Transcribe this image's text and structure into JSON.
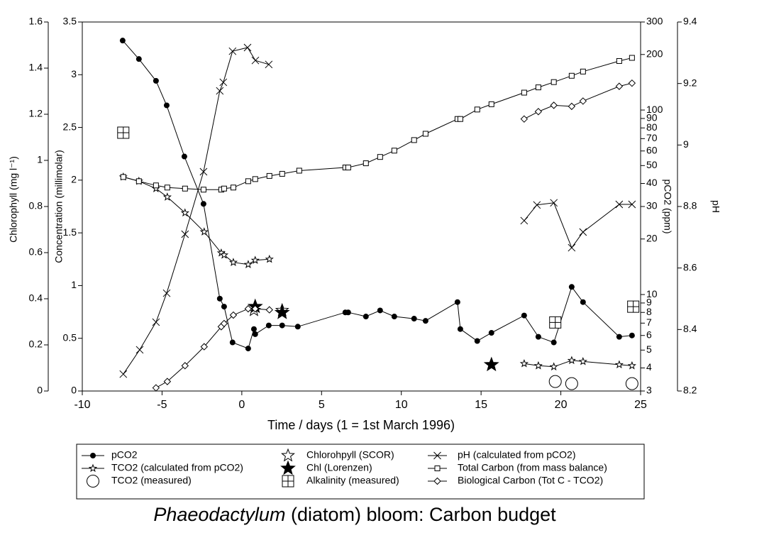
{
  "chart_data": {
    "type": "scatter",
    "title": {
      "italic": "Phaeodactylum",
      "rest": "(diatom) bloom: Carbon budget"
    },
    "xlabel": "Time / days (1 = 1st March 1996)",
    "ylabel": "Concentration (millimolar)",
    "y2label": "Chlorophyll (mg l⁻¹)",
    "y3label": "pCO2 (ppm)",
    "y4label": "pH",
    "xlim": [
      -10,
      25
    ],
    "xticks": [
      -10,
      -5,
      0,
      5,
      10,
      15,
      20,
      25
    ],
    "ylim": [
      0,
      3.5
    ],
    "yticks": [
      0,
      0.5,
      1,
      1.5,
      2,
      2.5,
      3,
      3.5
    ],
    "y2lim": [
      0,
      1.6
    ],
    "y2ticks": [
      0,
      0.2,
      0.4,
      0.6,
      0.8,
      1,
      1.2,
      1.4,
      1.6
    ],
    "y3lim": [
      3,
      300
    ],
    "y3log": true,
    "y3ticks": [
      3,
      4,
      5,
      6,
      7,
      8,
      9,
      10,
      20,
      30,
      40,
      50,
      60,
      70,
      80,
      90,
      100,
      200,
      300
    ],
    "y4lim": [
      8.2,
      9.4
    ],
    "y4ticks": [
      8.2,
      8.4,
      8.6,
      8.8,
      9,
      9.2,
      9.4
    ],
    "series": [
      {
        "name": "pCO2",
        "color": "#000000",
        "marker": "dot",
        "axis": "y3",
        "line": true,
        "x": [
          -7.47,
          -6.45,
          -5.38,
          -4.71,
          -3.6,
          -2.4,
          -1.38,
          -1.11,
          -0.58,
          0.4,
          0.76,
          0.84,
          1.69,
          2.53,
          3.51,
          6.49,
          6.67,
          7.78,
          8.67,
          9.56,
          10.8,
          11.52,
          13.52,
          13.7,
          14.76,
          15.65,
          17.7,
          18.59,
          19.56,
          20.68,
          21.39,
          23.66,
          24.46
        ],
        "values": [
          238,
          189,
          144,
          106,
          56,
          31,
          9.5,
          8.6,
          5.5,
          5.1,
          6.5,
          6.1,
          6.8,
          6.8,
          6.7,
          8.0,
          8.0,
          7.6,
          8.2,
          7.6,
          7.4,
          7.2,
          9.1,
          6.5,
          5.6,
          6.2,
          7.7,
          5.9,
          5.5,
          11.0,
          9.1,
          5.9,
          6.0
        ]
      },
      {
        "name": "TCO2 (calculated from pCO2)",
        "color": "#000000",
        "marker": "star",
        "axis": "y",
        "line": true,
        "x": [
          -7.43,
          -6.45,
          -5.38,
          -4.67,
          -3.56,
          -2.36,
          -1.29,
          -1.11,
          -0.53,
          0.4,
          0.84,
          1.73,
          null,
          17.7,
          18.59,
          19.56,
          20.68,
          21.39,
          23.66,
          24.46
        ],
        "values": [
          2.03,
          1.99,
          1.92,
          1.84,
          1.69,
          1.51,
          1.31,
          1.29,
          1.22,
          1.2,
          1.24,
          1.25,
          null,
          0.26,
          0.24,
          0.23,
          0.29,
          0.28,
          0.25,
          0.24
        ]
      },
      {
        "name": "TCO2 (measured)",
        "color": "#000000",
        "marker": "bigcircle",
        "axis": "y",
        "line": false,
        "x": [
          19.65,
          20.68,
          24.46
        ],
        "values": [
          0.09,
          0.07,
          0.07
        ]
      },
      {
        "name": "Chlorohpyll (SCOR)",
        "color": "#000000",
        "marker": "bigstar",
        "axis": "y2",
        "line": false,
        "x": [
          0.76,
          2.53
        ],
        "values": [
          0.35,
          0.35
        ]
      },
      {
        "name": "Chl (Lorenzen)",
        "color": "#000000",
        "marker": "bigstarfilled",
        "axis": "y2",
        "line": false,
        "x": [
          0.84,
          2.53,
          15.65
        ],
        "values": [
          0.366,
          0.34,
          0.114
        ]
      },
      {
        "name": "Alkalinity (measured)",
        "color": "#000000",
        "marker": "boxplus",
        "axis": "y",
        "line": false,
        "x": [
          -7.43,
          19.65,
          24.54
        ],
        "values": [
          2.45,
          0.65,
          0.8
        ]
      },
      {
        "name": "pH (calculated from pCO2)",
        "color": "#000000",
        "marker": "cross",
        "axis": "y4",
        "line": true,
        "x": [
          -7.43,
          -6.4,
          -5.38,
          -4.71,
          -3.56,
          -2.4,
          -1.38,
          -1.16,
          -0.58,
          0.36,
          0.85,
          1.69,
          null,
          17.7,
          18.5,
          19.56,
          20.68,
          21.39,
          23.66,
          24.46
        ],
        "values": [
          8.255,
          8.334,
          8.424,
          8.518,
          8.71,
          8.913,
          9.176,
          9.204,
          9.305,
          9.317,
          9.275,
          9.262,
          null,
          8.754,
          8.805,
          8.812,
          8.666,
          8.717,
          8.807,
          8.807
        ]
      },
      {
        "name": "Total Carbon (from mass balance)",
        "color": "#000000",
        "marker": "square",
        "axis": "y",
        "line": true,
        "x": [
          -7.43,
          -6.45,
          -5.38,
          -4.67,
          -3.56,
          -2.4,
          -1.29,
          -1.11,
          -0.53,
          0.4,
          0.84,
          1.73,
          2.53,
          3.6,
          6.49,
          6.67,
          7.78,
          8.67,
          9.56,
          10.8,
          11.52,
          13.52,
          13.7,
          14.76,
          15.65,
          17.7,
          18.59,
          19.56,
          20.68,
          21.39,
          23.66,
          24.46
        ],
        "values": [
          2.03,
          1.99,
          1.95,
          1.93,
          1.92,
          1.91,
          1.91,
          1.92,
          1.93,
          1.99,
          2.01,
          2.04,
          2.06,
          2.09,
          2.12,
          2.12,
          2.16,
          2.22,
          2.28,
          2.38,
          2.44,
          2.58,
          2.58,
          2.67,
          2.72,
          2.83,
          2.88,
          2.93,
          2.99,
          3.03,
          3.13,
          3.16
        ]
      },
      {
        "name": "Biological Carbon (Tot C - TCO2)",
        "color": "#000000",
        "marker": "diamond",
        "axis": "y",
        "line": true,
        "x": [
          -5.38,
          -4.67,
          -3.56,
          -2.36,
          -1.29,
          -1.11,
          -0.53,
          0.4,
          0.84,
          1.73,
          null,
          17.7,
          18.59,
          19.56,
          20.68,
          21.39,
          23.66,
          24.46
        ],
        "values": [
          0.03,
          0.09,
          0.24,
          0.42,
          0.61,
          0.64,
          0.72,
          0.78,
          0.78,
          0.77,
          null,
          2.58,
          2.65,
          2.71,
          2.7,
          2.75,
          2.89,
          2.92
        ]
      }
    ],
    "legend_order": [
      0,
      1,
      2,
      3,
      4,
      5,
      6,
      7,
      8
    ]
  }
}
